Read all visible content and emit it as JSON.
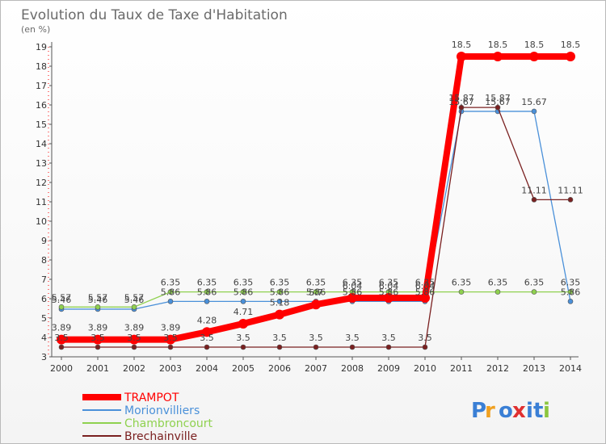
{
  "chart_data": {
    "type": "line",
    "title": "Evolution du Taux de Taxe d'Habitation",
    "subtitle": "(en %)",
    "xlabel": "",
    "ylabel": "",
    "x": [
      "2000",
      "2001",
      "2002",
      "2003",
      "2004",
      "2005",
      "2006",
      "2007",
      "2008",
      "2009",
      "2010",
      "2011",
      "2012",
      "2013",
      "2014"
    ],
    "ylim": [
      3,
      19
    ],
    "yticks": [
      3,
      4,
      5,
      6,
      7,
      8,
      9,
      10,
      11,
      12,
      13,
      14,
      15,
      16,
      17,
      18,
      19
    ],
    "grid": false,
    "legend_position": "bottom-left",
    "series": [
      {
        "name": "TRAMPOT",
        "color": "#ff0000",
        "values": [
          3.89,
          3.89,
          3.89,
          3.89,
          4.28,
          4.71,
          5.18,
          5.7,
          6.04,
          6.04,
          6.04,
          18.5,
          18.5,
          18.5,
          18.5
        ],
        "labels": [
          "3.89",
          "3.89",
          "3.89",
          "3.89",
          "4.28",
          "4.71",
          "5.18",
          "5.7",
          "6.04",
          "6.04",
          "6.04",
          "18.5",
          "18.5",
          "18.5",
          "18.5"
        ]
      },
      {
        "name": "Morionvilliers",
        "color": "#4a90d9",
        "values": [
          5.46,
          5.46,
          5.46,
          5.86,
          5.86,
          5.86,
          5.86,
          5.86,
          5.86,
          5.86,
          5.86,
          15.67,
          15.67,
          15.67,
          5.86
        ],
        "labels": [
          "5.46",
          "5.46",
          "5.46",
          "5.86",
          "5.86",
          "5.86",
          "5.86",
          "5.86",
          "5.86",
          "5.86",
          "5.86",
          "15.67",
          "15.67",
          "15.67",
          "5.86"
        ]
      },
      {
        "name": "Chambroncourt",
        "color": "#8fd14f",
        "values": [
          5.57,
          5.57,
          5.57,
          6.35,
          6.35,
          6.35,
          6.35,
          6.35,
          6.35,
          6.35,
          6.35,
          6.35,
          6.35,
          6.35,
          6.35
        ],
        "labels": [
          "5.57",
          "5.57",
          "5.57",
          "6.35",
          "6.35",
          "6.35",
          "6.35",
          "6.35",
          "6.35",
          "6.35",
          "6.35",
          "6.35",
          "6.35",
          "6.35",
          "6.35"
        ]
      },
      {
        "name": "Brechainville",
        "color": "#7a2020",
        "values": [
          3.5,
          3.5,
          3.5,
          3.5,
          3.5,
          3.5,
          3.5,
          3.5,
          3.5,
          3.5,
          3.5,
          15.87,
          15.87,
          11.11,
          11.11
        ],
        "labels": [
          "3.5",
          "3.5",
          "3.5",
          "3.5",
          "3.5",
          "3.5",
          "3.5",
          "3.5",
          "3.5",
          "3.5",
          "3.5",
          "15.87",
          "15.87",
          "11.11",
          "11.11"
        ]
      }
    ]
  },
  "brand": {
    "letters": [
      "P",
      "r",
      "o",
      "x",
      "i",
      "t",
      "i"
    ],
    "colors": [
      "#3a7fd5",
      "#f0a020",
      "#3a7fd5",
      "#e03030",
      "#3a7fd5",
      "#3a7fd5",
      "#8cc63f"
    ]
  }
}
